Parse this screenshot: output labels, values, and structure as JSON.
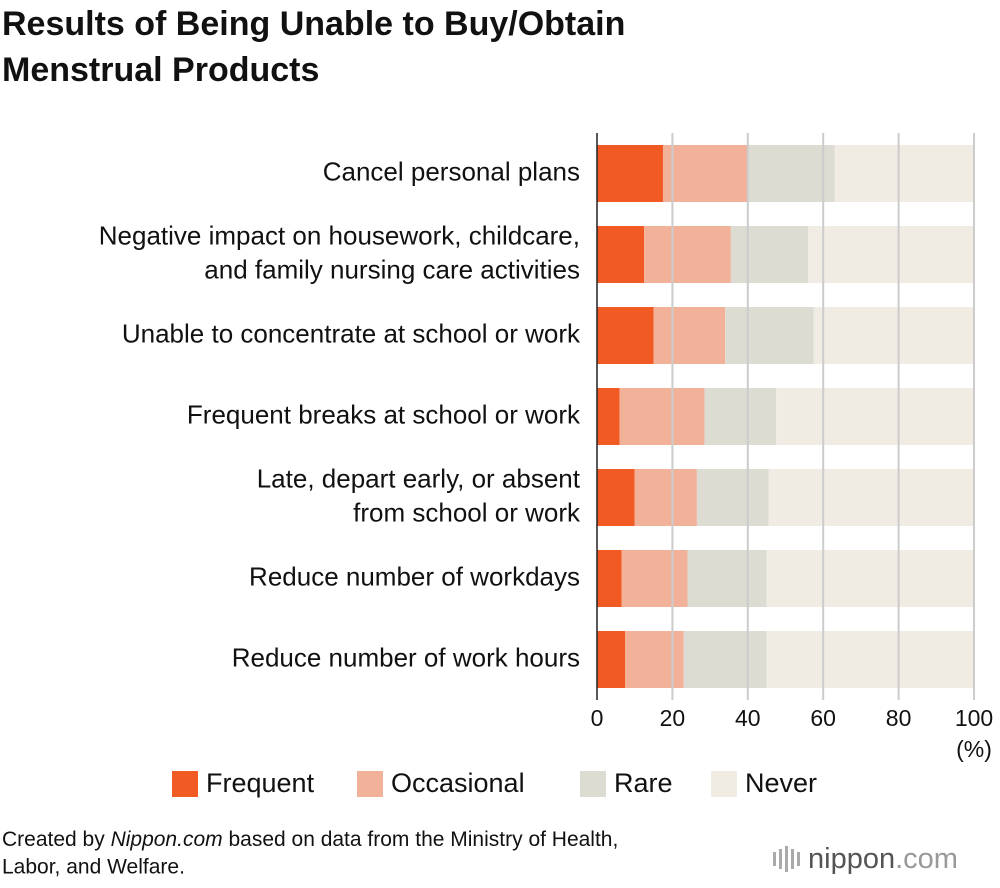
{
  "chart_data": {
    "type": "stacked-bar-horizontal",
    "title": [
      "Results of Being Unable to Buy/Obtain",
      "Menstrual Products"
    ],
    "categories": [
      [
        "Cancel personal plans"
      ],
      [
        "Negative impact on housework, childcare,",
        "and family nursing care activities"
      ],
      [
        "Unable to concentrate at school or work"
      ],
      [
        "Frequent breaks at school or work"
      ],
      [
        "Late, depart early, or absent",
        "from school or work"
      ],
      [
        "Reduce number of workdays"
      ],
      [
        "Reduce number of work hours"
      ]
    ],
    "series": [
      {
        "name": "Frequent",
        "color": "#f15a22",
        "values": [
          17.5,
          12.5,
          15.0,
          6.0,
          10.0,
          6.5,
          7.5
        ]
      },
      {
        "name": "Occasional",
        "color": "#f2b29a",
        "values": [
          22.5,
          23.0,
          19.0,
          22.5,
          16.5,
          17.5,
          15.5
        ]
      },
      {
        "name": "Rare",
        "color": "#dcdcd3",
        "values": [
          23.0,
          20.5,
          23.5,
          19.0,
          19.0,
          21.0,
          22.0
        ]
      },
      {
        "name": "Never",
        "color": "#f0ece4",
        "values": [
          37.0,
          44.0,
          42.5,
          52.5,
          54.5,
          55.0,
          55.0
        ]
      }
    ],
    "xlim": [
      0,
      100
    ],
    "xticks": [
      0,
      20,
      40,
      60,
      80,
      100
    ],
    "xlabel": "(%)",
    "grid": true,
    "source": [
      "Created by ",
      "Nippon.com",
      " based on data from the Ministry of Health,",
      "Labor, and Welfare."
    ],
    "logo": [
      "nippon",
      ".com"
    ]
  }
}
